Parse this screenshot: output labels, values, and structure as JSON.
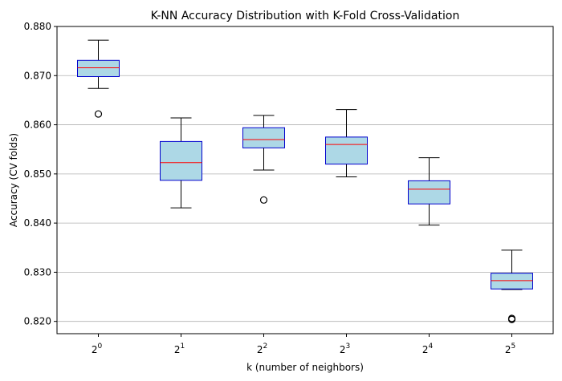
{
  "chart_data": {
    "type": "box",
    "title": "K-NN Accuracy Distribution with K-Fold Cross-Validation",
    "xlabel": "k (number of neighbors)",
    "ylabel": "Accuracy (CV folds)",
    "ylim": [
      0.8175,
      0.88
    ],
    "y_ticks": [
      "0.820",
      "0.830",
      "0.840",
      "0.850",
      "0.860",
      "0.870",
      "0.880"
    ],
    "y_tick_values": [
      0.82,
      0.83,
      0.84,
      0.85,
      0.86,
      0.87,
      0.88
    ],
    "grid": "horizontal",
    "categories": [
      {
        "base": "2",
        "exp": "0"
      },
      {
        "base": "2",
        "exp": "1"
      },
      {
        "base": "2",
        "exp": "2"
      },
      {
        "base": "2",
        "exp": "3"
      },
      {
        "base": "2",
        "exp": "4"
      },
      {
        "base": "2",
        "exp": "5"
      }
    ],
    "boxes": [
      {
        "whisker_low": 0.8674,
        "q1": 0.8698,
        "median": 0.8716,
        "q3": 0.8731,
        "whisker_high": 0.8772,
        "outliers": [
          0.8622
        ]
      },
      {
        "whisker_low": 0.8431,
        "q1": 0.8487,
        "median": 0.8523,
        "q3": 0.8566,
        "whisker_high": 0.8614,
        "outliers": []
      },
      {
        "whisker_low": 0.8508,
        "q1": 0.8553,
        "median": 0.857,
        "q3": 0.8594,
        "whisker_high": 0.8619,
        "outliers": [
          0.8447
        ]
      },
      {
        "whisker_low": 0.8494,
        "q1": 0.852,
        "median": 0.856,
        "q3": 0.8575,
        "whisker_high": 0.8631,
        "outliers": []
      },
      {
        "whisker_low": 0.8396,
        "q1": 0.8439,
        "median": 0.8469,
        "q3": 0.8486,
        "whisker_high": 0.8533,
        "outliers": []
      },
      {
        "whisker_low": 0.8265,
        "q1": 0.8266,
        "median": 0.8283,
        "q3": 0.8298,
        "whisker_high": 0.8345,
        "outliers": [
          0.8204,
          0.8206
        ]
      }
    ],
    "colors": {
      "box_fill": "#add8e6",
      "box_edge": "#0000cd",
      "median": "#ff0000",
      "whisker": "#000000",
      "grid": "#b0b0b0"
    }
  }
}
